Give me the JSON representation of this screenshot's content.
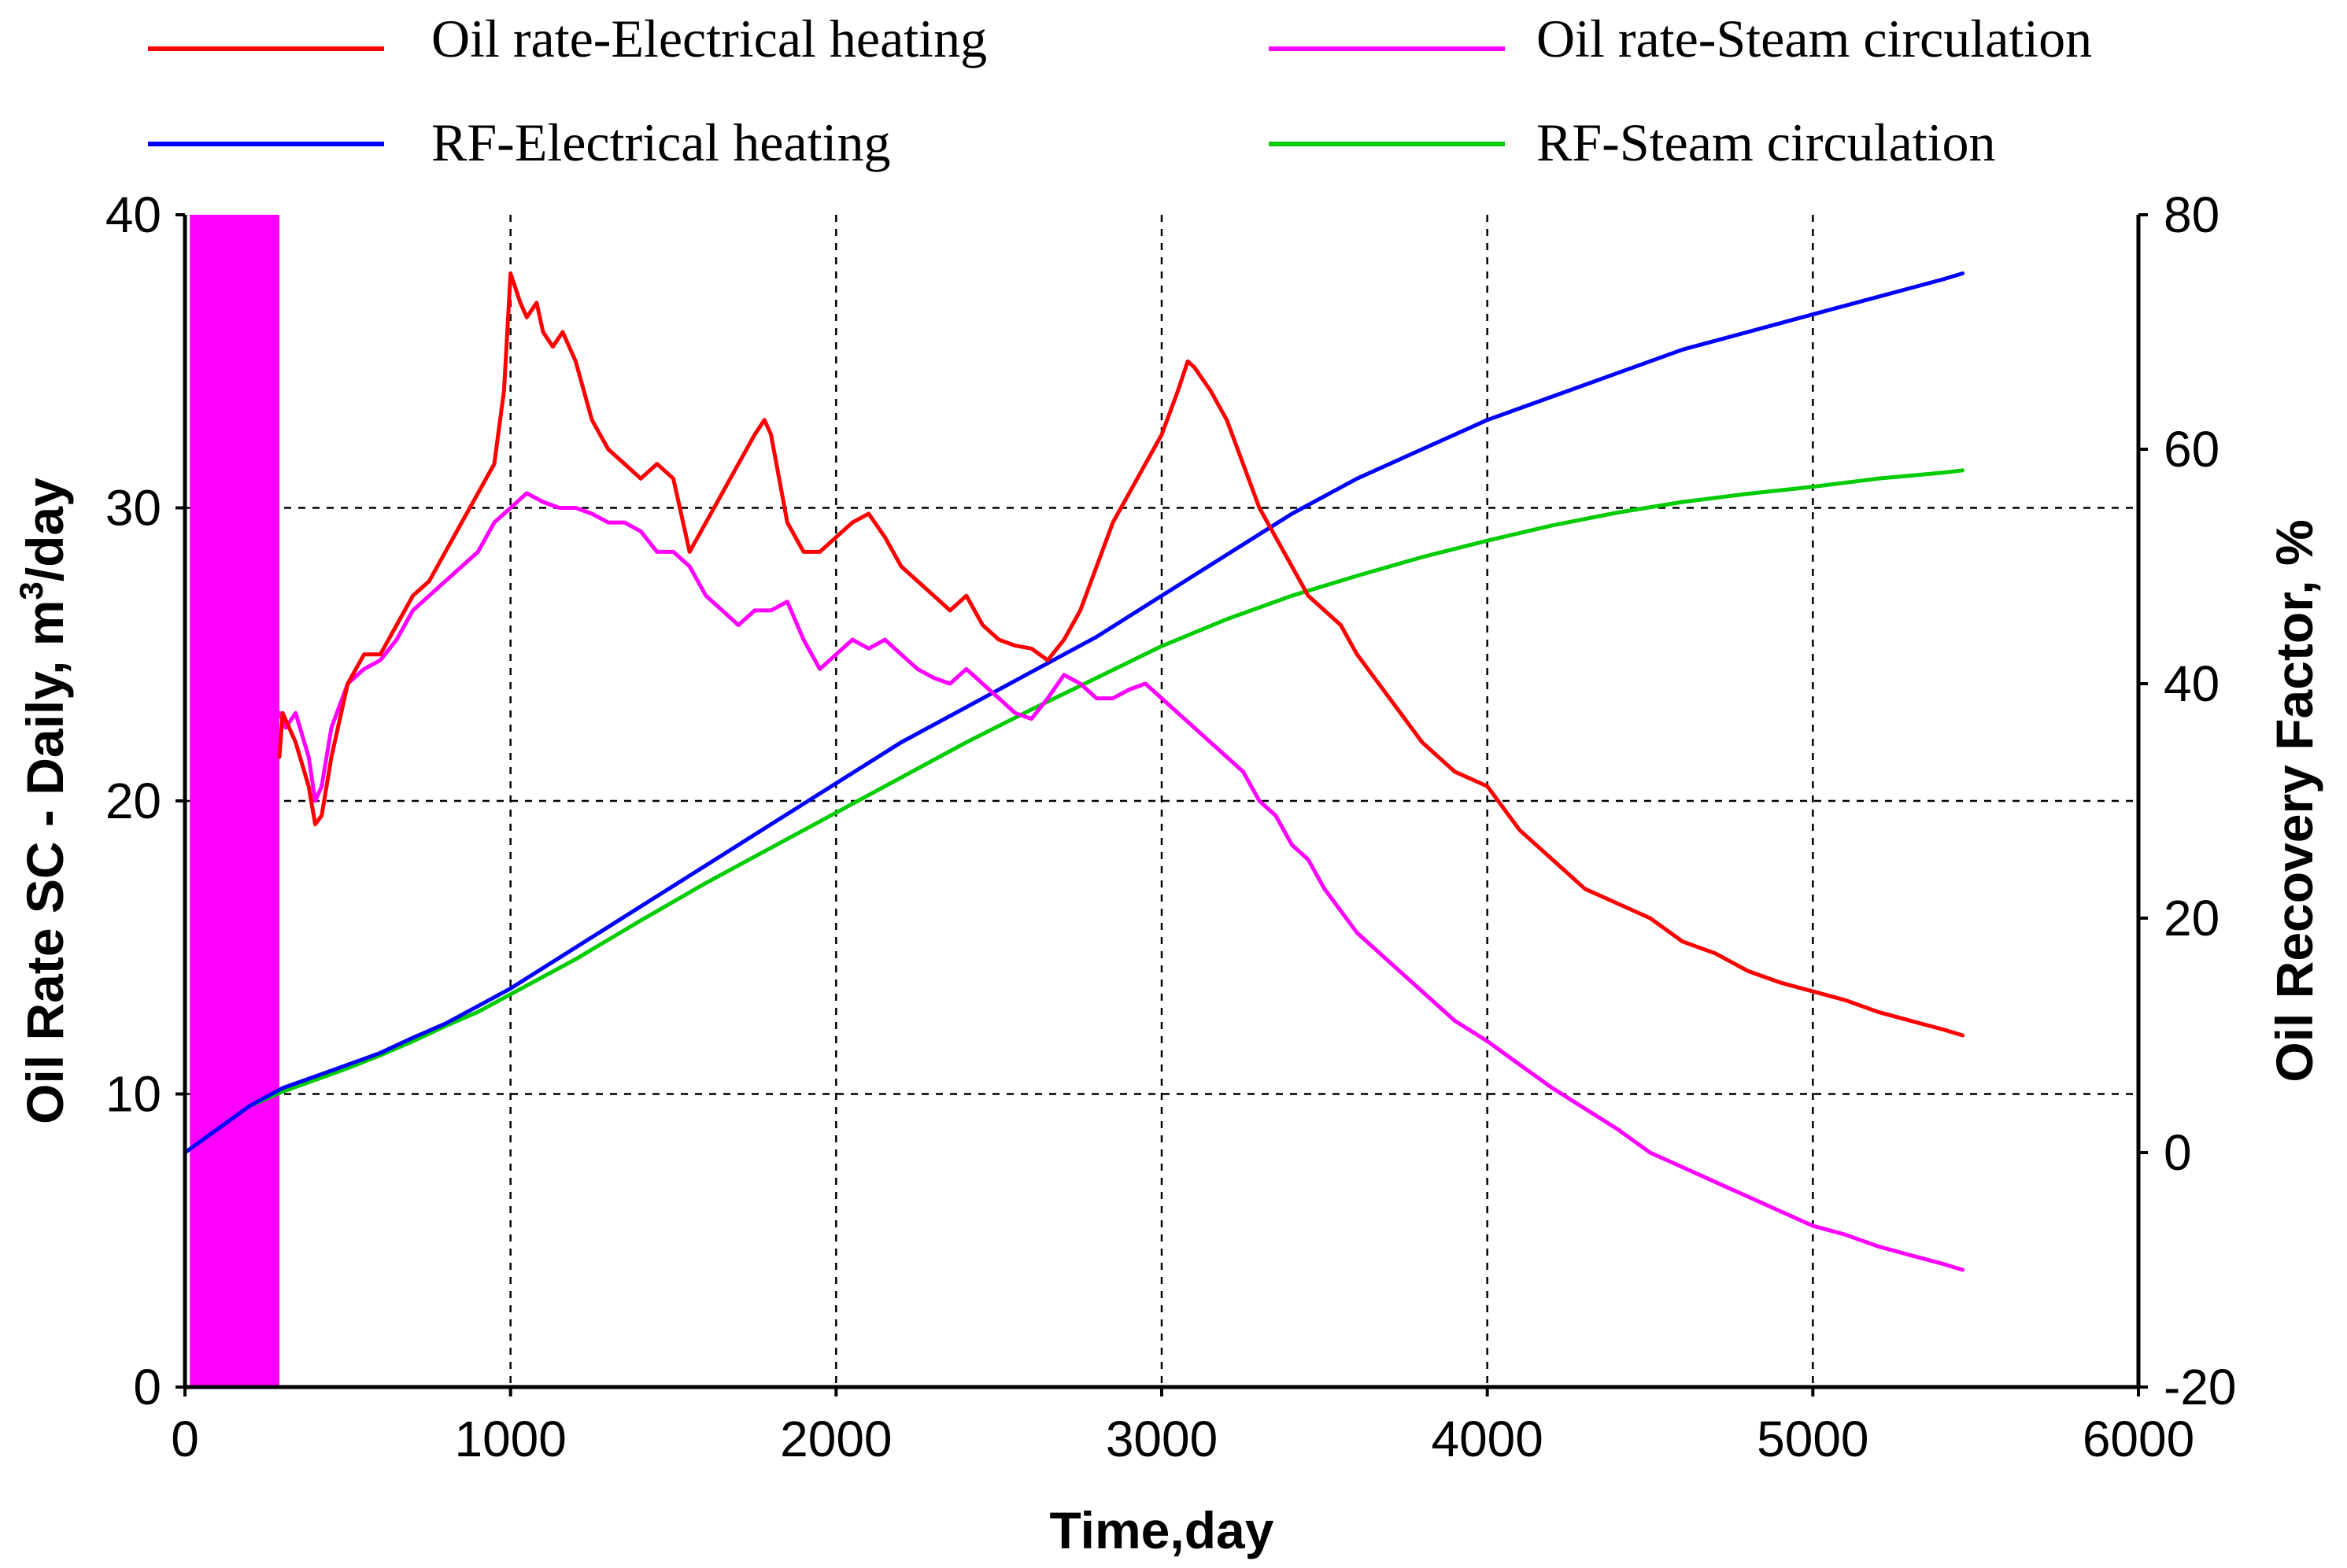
{
  "chart_data": {
    "type": "line",
    "title": "",
    "xlabel": "Time,day",
    "ylabel_left": "Oil Rate SC - Daily, m³/day",
    "ylabel_left_parts": {
      "before": "Oil Rate SC - Daily, m",
      "sup": "3",
      "after": "/day"
    },
    "ylabel_right": "Oil Recovery Factor, %",
    "xlim": [
      0,
      6000
    ],
    "ylim_left": [
      0,
      40
    ],
    "ylim_right": [
      -20,
      80
    ],
    "x_ticks": [
      "0",
      "1000",
      "2000",
      "3000",
      "4000",
      "5000",
      "6000"
    ],
    "x_tick_values": [
      0,
      1000,
      2000,
      3000,
      4000,
      5000,
      6000
    ],
    "y_left_ticks": [
      "0",
      "10",
      "20",
      "30",
      "40"
    ],
    "y_left_tick_values": [
      0,
      10,
      20,
      30,
      40
    ],
    "y_right_ticks": [
      "-20",
      "0",
      "20",
      "40",
      "60",
      "80"
    ],
    "y_right_tick_values": [
      -20,
      0,
      20,
      40,
      60,
      80
    ],
    "grid": true,
    "legend_position": "top",
    "series": [
      {
        "name": "Oil rate-Electrical heating",
        "color": "#ff0000",
        "axis": "left",
        "x": [
          290,
          300,
          340,
          380,
          400,
          420,
          450,
          500,
          550,
          600,
          650,
          700,
          750,
          800,
          850,
          900,
          950,
          980,
          1000,
          1030,
          1050,
          1080,
          1100,
          1130,
          1160,
          1200,
          1250,
          1300,
          1350,
          1400,
          1450,
          1500,
          1550,
          1600,
          1650,
          1700,
          1750,
          1780,
          1800,
          1850,
          1900,
          1950,
          2000,
          2050,
          2100,
          2150,
          2200,
          2250,
          2300,
          2350,
          2400,
          2450,
          2500,
          2550,
          2600,
          2650,
          2700,
          2750,
          2800,
          2850,
          2900,
          2950,
          3000,
          3050,
          3080,
          3100,
          3150,
          3200,
          3250,
          3300,
          3350,
          3400,
          3450,
          3500,
          3550,
          3600,
          3700,
          3800,
          3900,
          4000,
          4100,
          4200,
          4300,
          4400,
          4500,
          4600,
          4700,
          4800,
          4900,
          5000,
          5100,
          5200,
          5300,
          5400,
          5460
        ],
        "y": [
          21.5,
          23.0,
          22.0,
          20.5,
          19.2,
          19.5,
          21.5,
          24.0,
          25.0,
          25.0,
          26.0,
          27.0,
          27.5,
          28.5,
          29.5,
          30.5,
          31.5,
          34.0,
          38.0,
          37.0,
          36.5,
          37.0,
          36.0,
          35.5,
          36.0,
          35.0,
          33.0,
          32.0,
          31.5,
          31.0,
          31.5,
          31.0,
          28.5,
          29.5,
          30.5,
          31.5,
          32.5,
          33.0,
          32.5,
          29.5,
          28.5,
          28.5,
          29.0,
          29.5,
          29.8,
          29.0,
          28.0,
          27.5,
          27.0,
          26.5,
          27.0,
          26.0,
          25.5,
          25.3,
          25.2,
          24.8,
          25.5,
          26.5,
          28.0,
          29.5,
          30.5,
          31.5,
          32.5,
          34.0,
          35.0,
          34.8,
          34.0,
          33.0,
          31.5,
          30.0,
          29.0,
          28.0,
          27.0,
          26.5,
          26.0,
          25.0,
          23.5,
          22.0,
          21.0,
          20.5,
          19.0,
          18.0,
          17.0,
          16.5,
          16.0,
          15.2,
          14.8,
          14.2,
          13.8,
          13.5,
          13.2,
          12.8,
          12.5,
          12.2,
          12.0
        ]
      },
      {
        "name": "Oil rate-Steam circulation",
        "color": "#ff00ff",
        "axis": "left",
        "x": [
          290,
          310,
          340,
          380,
          400,
          420,
          450,
          500,
          550,
          600,
          650,
          700,
          750,
          800,
          850,
          900,
          950,
          1000,
          1050,
          1100,
          1150,
          1200,
          1250,
          1300,
          1350,
          1400,
          1450,
          1500,
          1550,
          1600,
          1650,
          1700,
          1750,
          1800,
          1850,
          1900,
          1950,
          2000,
          2050,
          2100,
          2150,
          2200,
          2250,
          2300,
          2350,
          2400,
          2450,
          2500,
          2550,
          2600,
          2650,
          2700,
          2750,
          2800,
          2850,
          2900,
          2950,
          3000,
          3050,
          3100,
          3150,
          3200,
          3250,
          3300,
          3350,
          3400,
          3450,
          3500,
          3600,
          3700,
          3800,
          3900,
          4000,
          4100,
          4200,
          4300,
          4400,
          4500,
          4600,
          4700,
          4800,
          4900,
          5000,
          5100,
          5200,
          5300,
          5400,
          5460
        ],
        "y": [
          23.0,
          22.5,
          23.0,
          21.5,
          20.0,
          20.5,
          22.5,
          24.0,
          24.5,
          24.8,
          25.5,
          26.5,
          27.0,
          27.5,
          28.0,
          28.5,
          29.5,
          30.0,
          30.5,
          30.2,
          30.0,
          30.0,
          29.8,
          29.5,
          29.5,
          29.2,
          28.5,
          28.5,
          28.0,
          27.0,
          26.5,
          26.0,
          26.5,
          26.5,
          26.8,
          25.5,
          24.5,
          25.0,
          25.5,
          25.2,
          25.5,
          25.0,
          24.5,
          24.2,
          24.0,
          24.5,
          24.0,
          23.5,
          23.0,
          22.8,
          23.5,
          24.3,
          24.0,
          23.5,
          23.5,
          23.8,
          24.0,
          23.5,
          23.0,
          22.5,
          22.0,
          21.5,
          21.0,
          20.0,
          19.5,
          18.5,
          18.0,
          17.0,
          15.5,
          14.5,
          13.5,
          12.5,
          11.8,
          11.0,
          10.2,
          9.5,
          8.8,
          8.0,
          7.5,
          7.0,
          6.5,
          6.0,
          5.5,
          5.2,
          4.8,
          4.5,
          4.2,
          4.0
        ]
      },
      {
        "name": "RF-Electrical heating",
        "color": "#0000ff",
        "axis": "right",
        "x": [
          0,
          100,
          200,
          300,
          400,
          500,
          600,
          700,
          800,
          900,
          1000,
          1200,
          1400,
          1600,
          1800,
          2000,
          2200,
          2400,
          2600,
          2800,
          3000,
          3200,
          3400,
          3600,
          3800,
          4000,
          4200,
          4400,
          4600,
          4800,
          5000,
          5200,
          5400,
          5460
        ],
        "y": [
          0.0,
          2.0,
          4.0,
          5.5,
          6.5,
          7.5,
          8.5,
          9.8,
          11.0,
          12.5,
          14.0,
          17.5,
          21.0,
          24.5,
          28.0,
          31.5,
          35.0,
          38.0,
          41.0,
          44.0,
          47.5,
          51.0,
          54.5,
          57.5,
          60.0,
          62.5,
          64.5,
          66.5,
          68.5,
          70.0,
          71.5,
          73.0,
          74.5,
          75.0
        ]
      },
      {
        "name": "RF-Steam circulation",
        "color": "#00cc00",
        "axis": "right",
        "x": [
          0,
          100,
          200,
          300,
          400,
          500,
          600,
          700,
          800,
          900,
          1000,
          1200,
          1400,
          1600,
          1800,
          2000,
          2200,
          2400,
          2600,
          2800,
          3000,
          3200,
          3400,
          3600,
          3800,
          4000,
          4200,
          4400,
          4600,
          4800,
          5000,
          5200,
          5400,
          5460
        ],
        "y": [
          0.0,
          2.0,
          4.0,
          5.2,
          6.2,
          7.2,
          8.3,
          9.5,
          10.8,
          12.0,
          13.5,
          16.5,
          19.8,
          23.0,
          26.0,
          29.0,
          32.0,
          35.0,
          37.8,
          40.5,
          43.2,
          45.5,
          47.5,
          49.2,
          50.8,
          52.2,
          53.5,
          54.6,
          55.5,
          56.2,
          56.8,
          57.5,
          58.0,
          58.2
        ]
      }
    ],
    "annotations": []
  }
}
